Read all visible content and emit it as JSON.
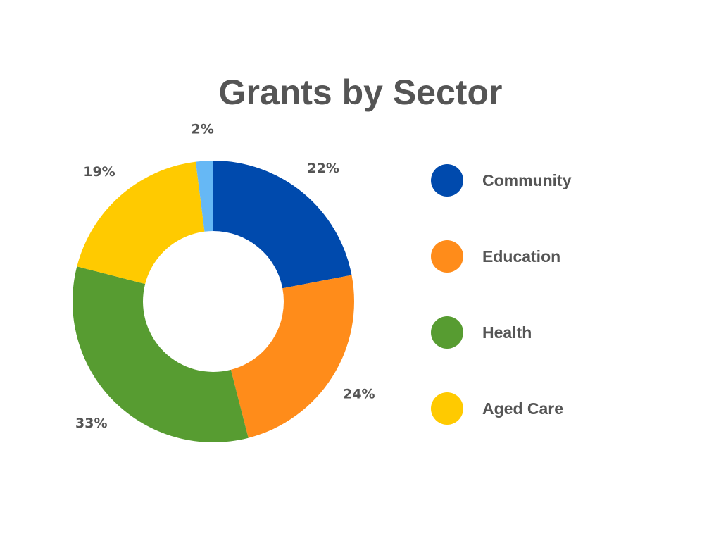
{
  "chart_data": {
    "type": "pie",
    "donut": true,
    "title": "Grants by Sector",
    "categories": [
      "Community",
      "Education",
      "Health",
      "Aged Care",
      ""
    ],
    "values": [
      22,
      24,
      33,
      19,
      2
    ],
    "labels": [
      "22%",
      "24%",
      "33%",
      "19%",
      "2%"
    ],
    "colors": [
      "#004AAD",
      "#FF8C1A",
      "#579C31",
      "#FFCA00",
      "#66B8F5"
    ],
    "legend_position": "right",
    "legend": [
      {
        "label": "Community",
        "color": "#004AAD"
      },
      {
        "label": "Education",
        "color": "#FF8C1A"
      },
      {
        "label": "Health",
        "color": "#579C31"
      },
      {
        "label": "Aged Care",
        "color": "#FFCA00"
      }
    ]
  }
}
